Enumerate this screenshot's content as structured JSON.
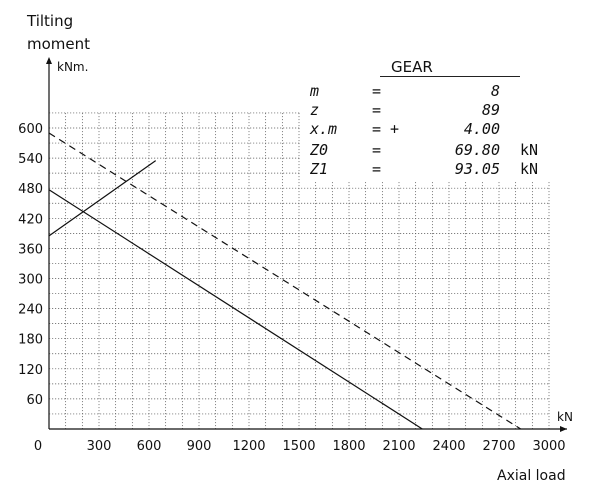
{
  "chart_data": {
    "type": "line",
    "title": "",
    "ylabel_line1": "Tilting",
    "ylabel_line2": "moment",
    "yunit": "kNm.",
    "xlabel": "Axial load",
    "xunit": "kN",
    "xlim": [
      0,
      3000
    ],
    "ylim": [
      0,
      630
    ],
    "xticks": [
      0,
      300,
      600,
      900,
      1200,
      1500,
      1800,
      2100,
      2400,
      2700,
      3000
    ],
    "xtick_labels": [
      "0",
      "300",
      "600",
      "900",
      "1200",
      "1500",
      "1800",
      "2100",
      "2400",
      "2700",
      "3000"
    ],
    "yticks": [
      60,
      120,
      180,
      240,
      300,
      360,
      420,
      480,
      540,
      600
    ],
    "ytick_labels": [
      "60",
      "120",
      "180",
      "240",
      "300",
      "360",
      "420",
      "480",
      "540",
      "600"
    ],
    "grid": true,
    "series": [
      {
        "style": "solid",
        "x": [
          0,
          2240
        ],
        "y": [
          477,
          0
        ]
      },
      {
        "style": "dashed",
        "x": [
          0,
          2830
        ],
        "y": [
          590,
          0
        ]
      },
      {
        "style": "solid",
        "x": [
          0,
          640
        ],
        "y": [
          385,
          535
        ]
      }
    ],
    "legend": {
      "heading": "GEAR",
      "rows": [
        {
          "key": "m",
          "eq": "=",
          "value": "8",
          "unit": ""
        },
        {
          "key": "z",
          "eq": "=",
          "value": "89",
          "unit": ""
        },
        {
          "key": "x.m",
          "eq": "= +",
          "value": "4.00",
          "unit": ""
        },
        {
          "key": "Z0",
          "eq": "=",
          "value": "69.80",
          "unit": "kN"
        },
        {
          "key": "Z1",
          "eq": "=",
          "value": "93.05",
          "unit": "kN"
        }
      ]
    }
  }
}
